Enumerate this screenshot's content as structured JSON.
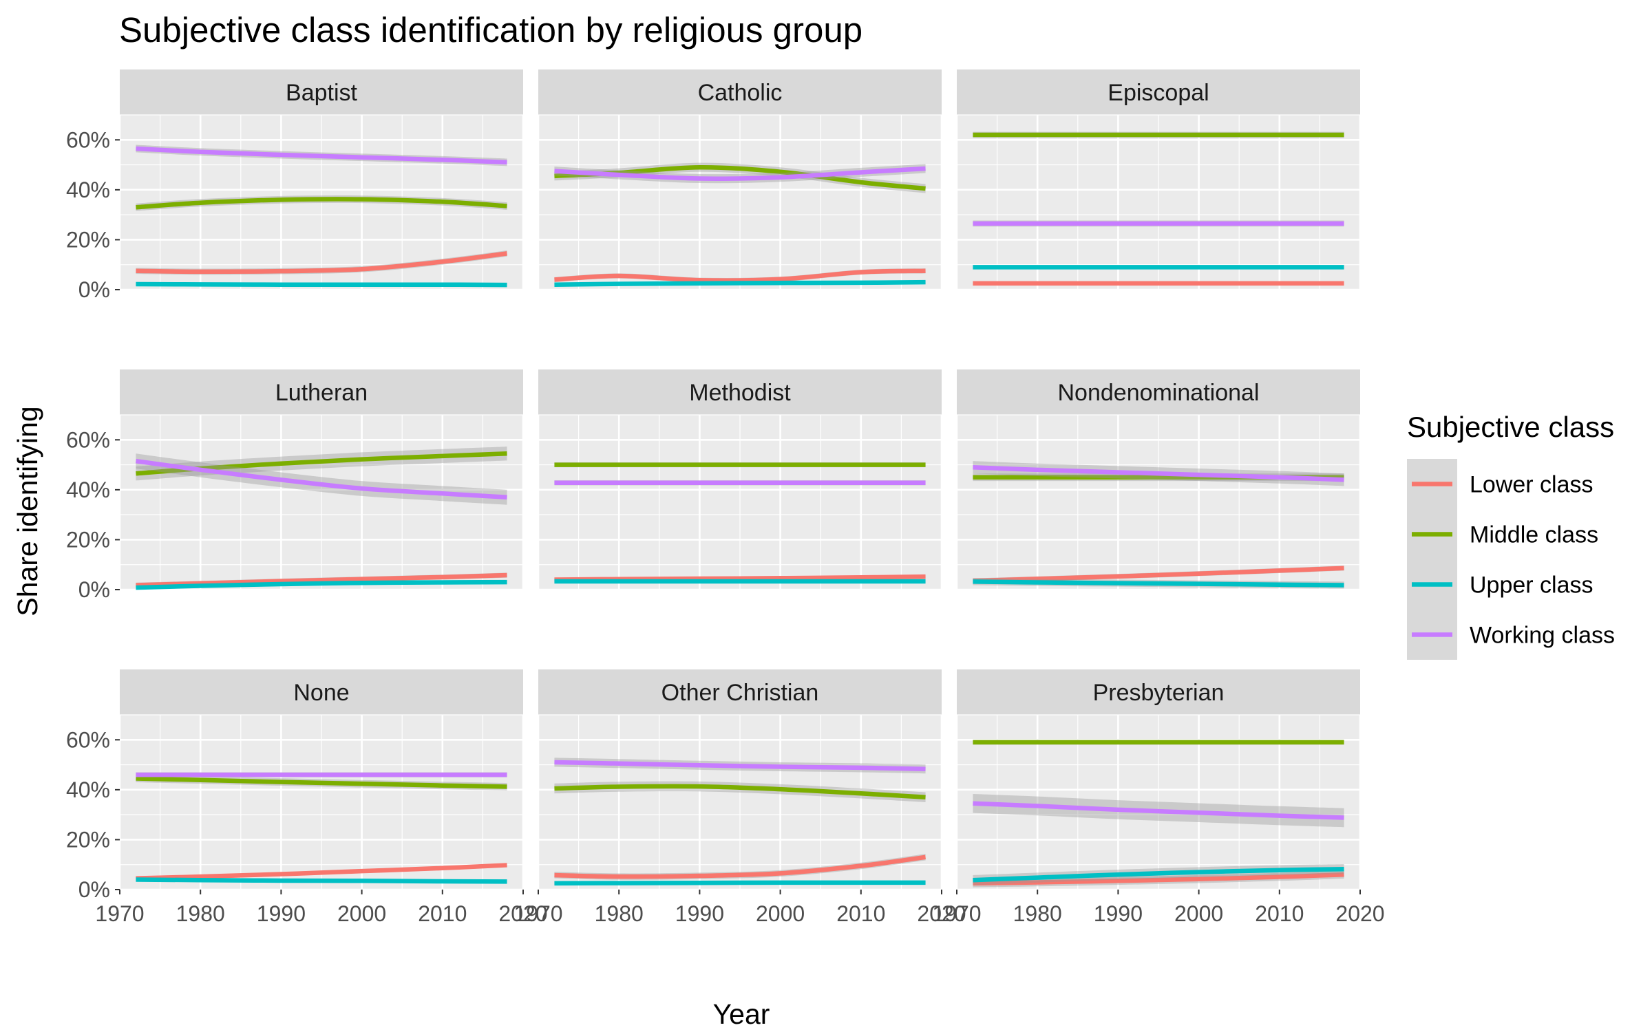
{
  "chart_data": {
    "type": "line",
    "title": "Subjective class identification by religious group",
    "xlabel": "Year",
    "ylabel": "Share identifying",
    "xlim": [
      1970,
      2020
    ],
    "ylim": [
      0,
      70
    ],
    "x_ticks": [
      1970,
      1980,
      1990,
      2000,
      2010,
      2020
    ],
    "x_tick_labels": [
      "1970",
      "1980",
      "1990",
      "2000",
      "2010",
      "2020"
    ],
    "y_ticks": [
      0,
      20,
      40,
      60
    ],
    "y_tick_labels": [
      "0%",
      "20%",
      "40%",
      "60%"
    ],
    "legend": {
      "title": "Subjective class",
      "position": "right",
      "entries": [
        "Lower class",
        "Middle class",
        "Upper class",
        "Working class"
      ]
    },
    "series_colors": {
      "Lower class": "#F8766D",
      "Middle class": "#7CAE00",
      "Upper class": "#00BFC4",
      "Working class": "#C77CFF"
    },
    "x": [
      1972,
      1980,
      1990,
      2000,
      2010,
      2018
    ],
    "facets": [
      {
        "name": "Baptist",
        "series": [
          {
            "name": "Lower class",
            "values": [
              7.5,
              7.2,
              7.4,
              8.2,
              11.2,
              14.5
            ],
            "band": 1.2
          },
          {
            "name": "Middle class",
            "values": [
              33,
              34.8,
              36,
              36.2,
              35.2,
              33.5
            ],
            "band": 1.5
          },
          {
            "name": "Upper class",
            "values": [
              2.2,
              2.1,
              2.0,
              2.0,
              2.0,
              1.9
            ],
            "band": 0.5
          },
          {
            "name": "Working class",
            "values": [
              56.5,
              55.2,
              54,
              53,
              52,
              51
            ],
            "band": 1.5
          }
        ]
      },
      {
        "name": "Catholic",
        "series": [
          {
            "name": "Lower class",
            "values": [
              4,
              5.5,
              3.8,
              4.2,
              7,
              7.5
            ],
            "band": 1.0
          },
          {
            "name": "Middle class",
            "values": [
              45.5,
              46.8,
              49,
              47.2,
              43,
              40.5
            ],
            "band": 1.8
          },
          {
            "name": "Upper class",
            "values": [
              2.0,
              2.3,
              2.5,
              2.7,
              2.8,
              3.0
            ],
            "band": 0.5
          },
          {
            "name": "Working class",
            "values": [
              47.5,
              46,
              44.5,
              45,
              47,
              48.5
            ],
            "band": 1.8
          }
        ]
      },
      {
        "name": "Episcopal",
        "series": [
          {
            "name": "Lower class",
            "values": [
              2.5,
              2.5,
              2.5,
              2.5,
              2.5,
              2.5
            ],
            "band": 0.6
          },
          {
            "name": "Middle class",
            "values": [
              62,
              62,
              62,
              62,
              62,
              62
            ],
            "band": 1.2
          },
          {
            "name": "Upper class",
            "values": [
              9,
              9,
              9,
              9,
              9,
              9
            ],
            "band": 0.8
          },
          {
            "name": "Working class",
            "values": [
              26.5,
              26.5,
              26.5,
              26.5,
              26.5,
              26.5
            ],
            "band": 1.2
          }
        ]
      },
      {
        "name": "Lutheran",
        "series": [
          {
            "name": "Lower class",
            "values": [
              1.8,
              2.5,
              3.4,
              4.2,
              5.0,
              5.8
            ],
            "band": 1.0
          },
          {
            "name": "Middle class",
            "values": [
              46.5,
              48.5,
              50.5,
              52.2,
              53.5,
              54.5
            ],
            "band": 2.8
          },
          {
            "name": "Upper class",
            "values": [
              0.8,
              1.5,
              2.2,
              2.7,
              2.9,
              3.0
            ],
            "band": 0.8
          },
          {
            "name": "Working class",
            "values": [
              51.5,
              48,
              44,
              40.5,
              38.5,
              37
            ],
            "band": 3.0
          }
        ]
      },
      {
        "name": "Methodist",
        "series": [
          {
            "name": "Lower class",
            "values": [
              4,
              4.2,
              4.4,
              4.6,
              4.9,
              5.2
            ],
            "band": 0.6
          },
          {
            "name": "Middle class",
            "values": [
              50,
              50,
              50,
              50,
              50,
              50
            ],
            "band": 1.0
          },
          {
            "name": "Upper class",
            "values": [
              3.3,
              3.3,
              3.3,
              3.3,
              3.3,
              3.3
            ],
            "band": 0.5
          },
          {
            "name": "Working class",
            "values": [
              42.8,
              42.8,
              42.8,
              42.8,
              42.8,
              42.8
            ],
            "band": 1.0
          }
        ]
      },
      {
        "name": "Nondenominational",
        "series": [
          {
            "name": "Lower class",
            "values": [
              3.5,
              4.3,
              5.3,
              6.4,
              7.6,
              8.6
            ],
            "band": 1.0
          },
          {
            "name": "Middle class",
            "values": [
              45,
              45,
              45,
              45,
              45,
              45
            ],
            "band": 1.5
          },
          {
            "name": "Upper class",
            "values": [
              3.2,
              2.9,
              2.6,
              2.3,
              2.0,
              1.8
            ],
            "band": 1.4
          },
          {
            "name": "Working class",
            "values": [
              49,
              48,
              47,
              46,
              45,
              44
            ],
            "band": 2.5
          }
        ]
      },
      {
        "name": "None",
        "series": [
          {
            "name": "Lower class",
            "values": [
              4.5,
              5.2,
              6.2,
              7.4,
              8.6,
              9.8
            ],
            "band": 0.8
          },
          {
            "name": "Middle class",
            "values": [
              44.5,
              43.9,
              43.1,
              42.4,
              41.7,
              41.2
            ],
            "band": 1.5
          },
          {
            "name": "Upper class",
            "values": [
              4,
              3.8,
              3.6,
              3.5,
              3.3,
              3.2
            ],
            "band": 0.6
          },
          {
            "name": "Working class",
            "values": [
              46,
              46,
              46,
              46,
              46,
              46
            ],
            "band": 1.0
          }
        ]
      },
      {
        "name": "Other Christian",
        "series": [
          {
            "name": "Lower class",
            "values": [
              5.8,
              5.2,
              5.5,
              6.5,
              9.5,
              13
            ],
            "band": 1.3
          },
          {
            "name": "Middle class",
            "values": [
              40.5,
              41.2,
              41.3,
              40.2,
              38.5,
              37
            ],
            "band": 2.0
          },
          {
            "name": "Upper class",
            "values": [
              2.5,
              2.6,
              2.7,
              2.8,
              2.8,
              2.8
            ],
            "band": 0.6
          },
          {
            "name": "Working class",
            "values": [
              51,
              50.5,
              49.8,
              49.2,
              48.8,
              48.3
            ],
            "band": 1.8
          }
        ]
      },
      {
        "name": "Presbyterian",
        "series": [
          {
            "name": "Lower class",
            "values": [
              2.5,
              2.9,
              3.5,
              4.2,
              5.1,
              6.0
            ],
            "band": 1.6
          },
          {
            "name": "Middle class",
            "values": [
              59,
              59,
              59,
              59,
              59,
              59
            ],
            "band": 1.0
          },
          {
            "name": "Upper class",
            "values": [
              3.8,
              4.8,
              6.0,
              7.0,
              7.8,
              8.2
            ],
            "band": 2.0
          },
          {
            "name": "Working class",
            "values": [
              34.5,
              33.5,
              32,
              30.8,
              29.6,
              28.8
            ],
            "band": 3.8
          }
        ]
      }
    ]
  }
}
